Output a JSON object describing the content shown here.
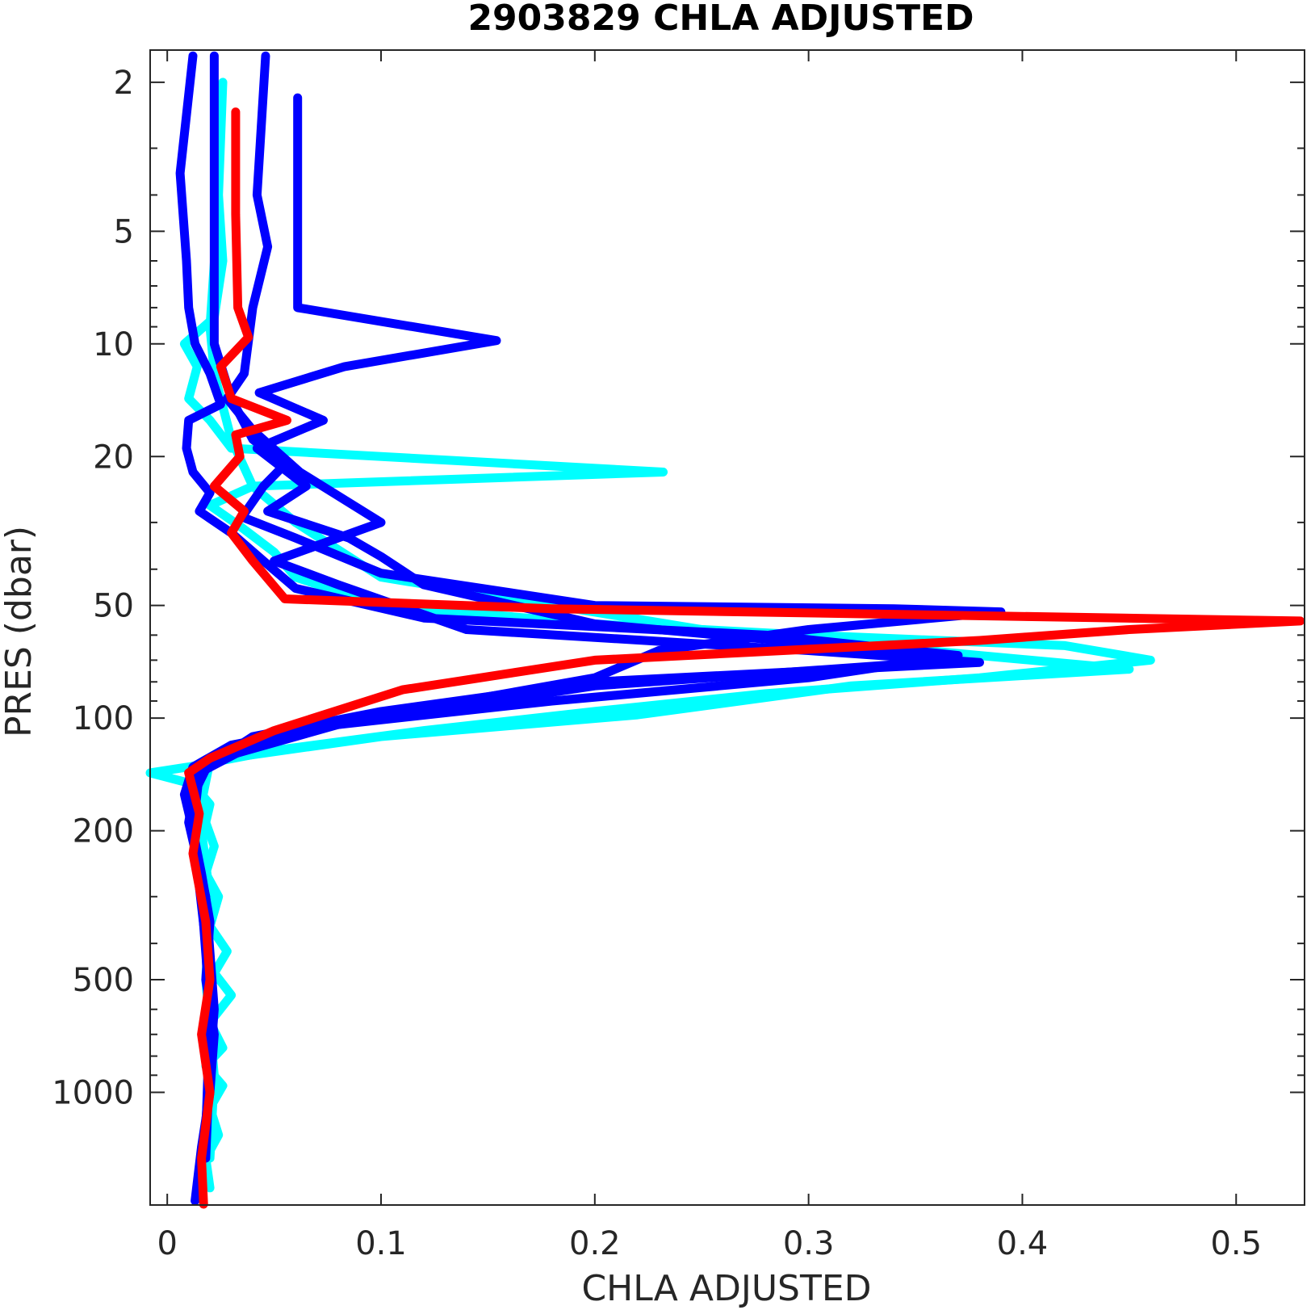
{
  "chart_data": {
    "type": "line",
    "title": "2903829  CHLA ADJUSTED",
    "xlabel": "CHLA ADJUSTED",
    "ylabel": "PRES (dbar)",
    "xlim": [
      -0.008,
      0.532
    ],
    "ylim": [
      1.64,
      2000
    ],
    "yscale": "log",
    "yreversed": true,
    "xticks": [
      0,
      0.1,
      0.2,
      0.3,
      0.4,
      0.5
    ],
    "xtick_labels": [
      "0",
      "0.1",
      "0.2",
      "0.3",
      "0.4",
      "0.5"
    ],
    "yticks": [
      2,
      5,
      10,
      20,
      50,
      100,
      200,
      500,
      1000
    ],
    "ytick_labels": [
      "2",
      "5",
      "10",
      "20",
      "50",
      "100",
      "200",
      "500",
      "1000"
    ],
    "grid": false,
    "series": [
      {
        "color": "#00ffff",
        "points": [
          [
            0.026,
            2.0
          ],
          [
            0.024,
            4.0
          ],
          [
            0.026,
            6.0
          ],
          [
            0.022,
            8.5
          ],
          [
            0.008,
            10.0
          ],
          [
            0.014,
            11.5
          ],
          [
            0.01,
            14.0
          ],
          [
            0.02,
            16.0
          ],
          [
            0.03,
            19.0
          ],
          [
            0.232,
            22.0
          ],
          [
            0.04,
            24.0
          ],
          [
            0.02,
            27.0
          ],
          [
            0.035,
            31.0
          ],
          [
            0.05,
            36.0
          ],
          [
            0.06,
            42.0
          ],
          [
            0.1,
            50.0
          ],
          [
            0.2,
            56.0
          ],
          [
            0.3,
            60.0
          ],
          [
            0.42,
            64.0
          ],
          [
            0.46,
            70.0
          ],
          [
            0.38,
            78.0
          ],
          [
            0.28,
            86.0
          ],
          [
            0.2,
            96.0
          ],
          [
            0.12,
            108.0
          ],
          [
            0.05,
            122.0
          ],
          [
            0.01,
            135.0
          ],
          [
            -0.008,
            140.0
          ],
          [
            0.012,
            150.0
          ],
          [
            0.02,
            170.0
          ],
          [
            0.018,
            190.0
          ],
          [
            0.022,
            220.0
          ],
          [
            0.018,
            260.0
          ],
          [
            0.024,
            300.0
          ],
          [
            0.02,
            360.0
          ],
          [
            0.028,
            420.0
          ],
          [
            0.022,
            480.0
          ],
          [
            0.03,
            550.0
          ],
          [
            0.02,
            650.0
          ],
          [
            0.026,
            760.0
          ],
          [
            0.018,
            850.0
          ],
          [
            0.026,
            960.0
          ],
          [
            0.02,
            1100.0
          ],
          [
            0.024,
            1300.0
          ],
          [
            0.018,
            1500.0
          ],
          [
            0.02,
            1800.0
          ]
        ]
      },
      {
        "color": "#00ffff",
        "points": [
          [
            0.025,
            2.1
          ],
          [
            0.023,
            5.0
          ],
          [
            0.02,
            9.0
          ],
          [
            0.022,
            12.0
          ],
          [
            0.03,
            18.0
          ],
          [
            0.04,
            24.0
          ],
          [
            0.06,
            30.0
          ],
          [
            0.1,
            42.0
          ],
          [
            0.25,
            58.0
          ],
          [
            0.38,
            68.0
          ],
          [
            0.45,
            74.0
          ],
          [
            0.32,
            82.0
          ],
          [
            0.22,
            98.0
          ],
          [
            0.1,
            112.0
          ],
          [
            0.02,
            130.0
          ],
          [
            0.015,
            180.0
          ],
          [
            0.02,
            300.0
          ],
          [
            0.018,
            500.0
          ],
          [
            0.022,
            900.0
          ],
          [
            0.02,
            1500.0
          ]
        ]
      },
      {
        "color": "#0000ff",
        "points": [
          [
            0.012,
            1.7
          ],
          [
            0.006,
            3.5
          ],
          [
            0.009,
            6.0
          ],
          [
            0.01,
            8.0
          ],
          [
            0.013,
            10.0
          ],
          [
            0.02,
            12.0
          ],
          [
            0.025,
            14.5
          ],
          [
            0.01,
            16.0
          ],
          [
            0.009,
            19.0
          ],
          [
            0.012,
            22.0
          ],
          [
            0.02,
            25.0
          ],
          [
            0.015,
            28.0
          ],
          [
            0.03,
            32.0
          ],
          [
            0.045,
            38.0
          ],
          [
            0.06,
            45.0
          ],
          [
            0.12,
            54.0
          ],
          [
            0.28,
            60.0
          ],
          [
            0.37,
            68.0
          ],
          [
            0.3,
            78.0
          ],
          [
            0.18,
            90.0
          ],
          [
            0.08,
            104.0
          ],
          [
            0.03,
            118.0
          ],
          [
            0.012,
            135.0
          ],
          [
            0.008,
            160.0
          ],
          [
            0.012,
            200.0
          ],
          [
            0.016,
            260.0
          ],
          [
            0.02,
            350.0
          ],
          [
            0.018,
            500.0
          ],
          [
            0.022,
            700.0
          ],
          [
            0.02,
            1000.0
          ],
          [
            0.016,
            1400.0
          ],
          [
            0.013,
            1950.0
          ]
        ]
      },
      {
        "color": "#0000ff",
        "points": [
          [
            0.022,
            1.7
          ],
          [
            0.022,
            5.0
          ],
          [
            0.022,
            10.0
          ],
          [
            0.03,
            14.0
          ],
          [
            0.04,
            18.0
          ],
          [
            0.055,
            21.0
          ],
          [
            0.045,
            24.0
          ],
          [
            0.035,
            29.0
          ],
          [
            0.06,
            33.0
          ],
          [
            0.1,
            41.0
          ],
          [
            0.2,
            50.0
          ],
          [
            0.34,
            51.0
          ],
          [
            0.39,
            52.0
          ],
          [
            0.3,
            58.0
          ],
          [
            0.23,
            66.0
          ],
          [
            0.2,
            78.0
          ],
          [
            0.12,
            94.0
          ],
          [
            0.05,
            110.0
          ],
          [
            0.015,
            140.0
          ],
          [
            0.012,
            200.0
          ],
          [
            0.018,
            400.0
          ],
          [
            0.02,
            800.0
          ],
          [
            0.018,
            1500.0
          ]
        ]
      },
      {
        "color": "#0000ff",
        "points": [
          [
            0.046,
            1.7
          ],
          [
            0.042,
            4.0
          ],
          [
            0.047,
            5.5
          ],
          [
            0.04,
            8.0
          ],
          [
            0.036,
            12.0
          ],
          [
            0.028,
            14.0
          ],
          [
            0.04,
            17.0
          ],
          [
            0.062,
            22.0
          ],
          [
            0.1,
            30.0
          ],
          [
            0.05,
            38.0
          ],
          [
            0.08,
            44.0
          ],
          [
            0.14,
            58.0
          ],
          [
            0.3,
            66.0
          ],
          [
            0.38,
            71.0
          ],
          [
            0.2,
            80.0
          ],
          [
            0.1,
            96.0
          ],
          [
            0.04,
            112.0
          ],
          [
            0.014,
            140.0
          ],
          [
            0.01,
            190.0
          ],
          [
            0.018,
            300.0
          ],
          [
            0.022,
            600.0
          ],
          [
            0.018,
            1200.0
          ]
        ]
      },
      {
        "color": "#0000ff",
        "points": [
          [
            0.061,
            2.2
          ],
          [
            0.061,
            5.0
          ],
          [
            0.061,
            8.0
          ],
          [
            0.154,
            9.8
          ],
          [
            0.083,
            11.5
          ],
          [
            0.043,
            13.5
          ],
          [
            0.073,
            16.0
          ],
          [
            0.042,
            19.0
          ],
          [
            0.065,
            24.0
          ],
          [
            0.047,
            28.0
          ],
          [
            0.085,
            33.0
          ],
          [
            0.1,
            37.0
          ],
          [
            0.12,
            44.0
          ],
          [
            0.2,
            56.0
          ],
          [
            0.3,
            63.0
          ],
          [
            0.37,
            70.0
          ],
          [
            0.2,
            82.0
          ],
          [
            0.08,
            104.0
          ],
          [
            0.02,
            130.0
          ],
          [
            0.01,
            170.0
          ],
          [
            0.016,
            300.0
          ],
          [
            0.02,
            600.0
          ],
          [
            0.018,
            1300.0
          ]
        ]
      },
      {
        "color": "#ff0000",
        "points": [
          [
            0.032,
            2.4
          ],
          [
            0.032,
            4.5
          ],
          [
            0.033,
            8.0
          ],
          [
            0.038,
            9.6
          ],
          [
            0.025,
            11.5
          ],
          [
            0.03,
            14.0
          ],
          [
            0.056,
            16.0
          ],
          [
            0.032,
            17.5
          ],
          [
            0.034,
            20.0
          ],
          [
            0.022,
            24.0
          ],
          [
            0.036,
            28.0
          ],
          [
            0.03,
            32.0
          ],
          [
            0.04,
            38.0
          ],
          [
            0.055,
            48.0
          ],
          [
            0.18,
            51.0
          ],
          [
            0.53,
            55.0
          ],
          [
            0.45,
            58.0
          ],
          [
            0.38,
            62.0
          ],
          [
            0.2,
            70.0
          ],
          [
            0.11,
            84.0
          ],
          [
            0.05,
            108.0
          ],
          [
            0.02,
            128.0
          ],
          [
            0.01,
            140.0
          ],
          [
            0.015,
            180.0
          ],
          [
            0.012,
            230.0
          ],
          [
            0.018,
            350.0
          ],
          [
            0.02,
            500.0
          ],
          [
            0.016,
            700.0
          ],
          [
            0.02,
            1000.0
          ],
          [
            0.016,
            1500.0
          ],
          [
            0.017,
            1990.0
          ]
        ]
      }
    ]
  }
}
